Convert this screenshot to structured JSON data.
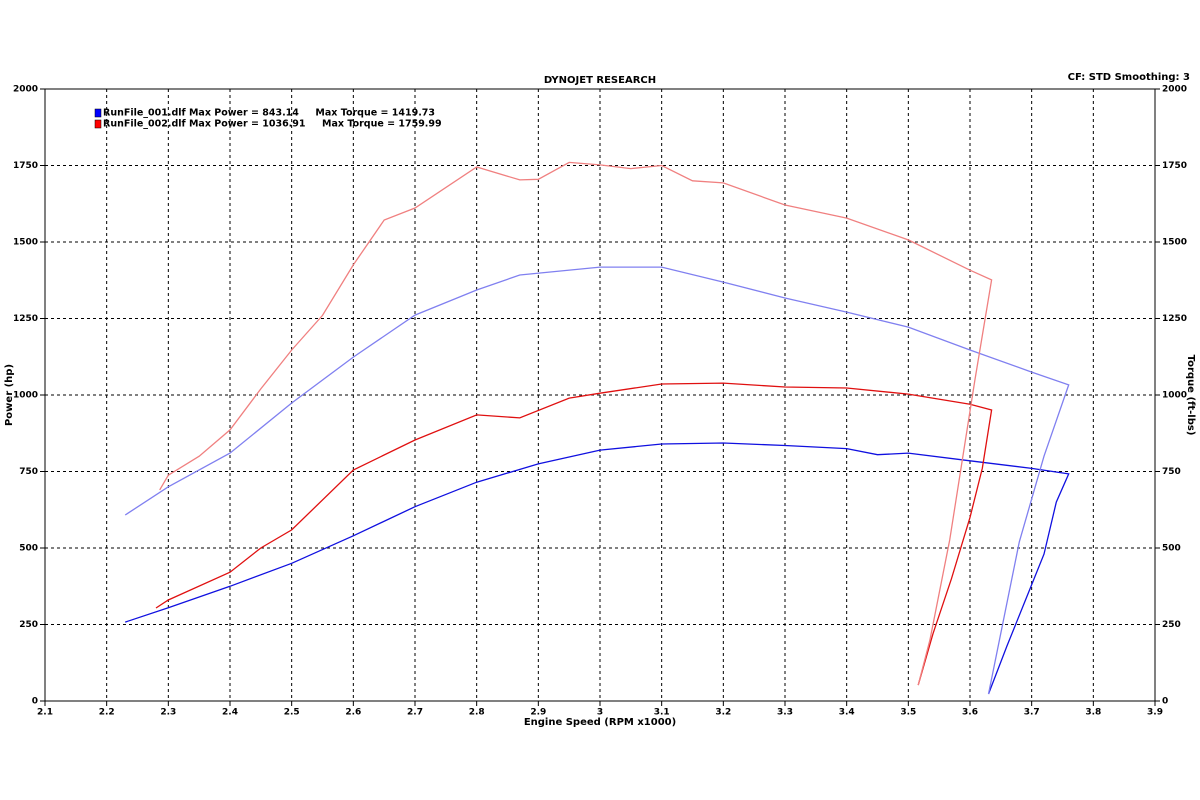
{
  "chart_data": {
    "type": "line",
    "title": "DYNOJET RESEARCH",
    "settings_text": "CF: STD  Smoothing: 3",
    "x_label": "Engine Speed (RPM x1000)",
    "y_label": "Power (hp)",
    "y2_label": "Torque (ft-lbs)",
    "xlim": [
      2.1,
      3.9
    ],
    "xticks": [
      2.1,
      2.2,
      2.3,
      2.4,
      2.5,
      2.6,
      2.7,
      2.8,
      2.9,
      3.0,
      3.1,
      3.2,
      3.3,
      3.4,
      3.5,
      3.6,
      3.7,
      3.8,
      3.9
    ],
    "ylim": [
      0,
      2000
    ],
    "yticks": [
      0,
      250,
      500,
      750,
      1000,
      1250,
      1500,
      1750,
      2000
    ],
    "y2lim": [
      0,
      2000
    ],
    "y2ticks": [
      0,
      250,
      500,
      750,
      1000,
      1250,
      1500,
      1750,
      2000
    ],
    "grid": true,
    "legend": [
      {
        "text": "RunFile_001.dlf Max Power = 843.14     Max Torque = 1419.73",
        "color": "#0000ff"
      },
      {
        "text": "RunFile_002.dlf Max Power = 1036.91     Max Torque = 1759.99",
        "color": "#ff0000"
      }
    ],
    "series": [
      {
        "color": "#1010e0",
        "x": [
          2.23,
          2.3,
          2.4,
          2.5,
          2.6,
          2.7,
          2.8,
          2.9,
          3.0,
          3.1,
          3.2,
          3.3,
          3.4,
          3.45,
          3.5,
          3.6,
          3.7,
          3.76,
          3.74,
          3.72,
          3.69,
          3.66,
          3.63
        ],
        "values": [
          258,
          305,
          375,
          450,
          540,
          635,
          715,
          775,
          820,
          840,
          843,
          835,
          825,
          805,
          810,
          785,
          760,
          742,
          650,
          480,
          330,
          180,
          23
        ]
      },
      {
        "color": "#8080f0",
        "axis": "y2",
        "x": [
          2.23,
          2.3,
          2.4,
          2.5,
          2.6,
          2.7,
          2.8,
          2.87,
          3.0,
          3.1,
          3.2,
          3.3,
          3.4,
          3.5,
          3.6,
          3.7,
          3.76,
          3.72,
          3.68,
          3.63
        ],
        "values": [
          608,
          700,
          810,
          974,
          1124,
          1261,
          1343,
          1392,
          1418,
          1418,
          1369,
          1317,
          1271,
          1222,
          1147,
          1075,
          1033,
          800,
          520,
          23
        ]
      },
      {
        "color": "#e01010",
        "x": [
          2.28,
          2.3,
          2.4,
          2.45,
          2.5,
          2.6,
          2.7,
          2.8,
          2.87,
          2.95,
          3.0,
          3.1,
          3.2,
          3.3,
          3.4,
          3.5,
          3.6,
          3.635,
          3.62,
          3.6,
          3.57,
          3.54,
          3.516
        ],
        "values": [
          304,
          330,
          421,
          500,
          559,
          755,
          853,
          935,
          925,
          990,
          1006,
          1036,
          1039,
          1026,
          1023,
          1003,
          970,
          951,
          760,
          600,
          400,
          220,
          52
        ]
      },
      {
        "color": "#f08080",
        "axis": "y2",
        "x": [
          2.286,
          2.3,
          2.35,
          2.4,
          2.45,
          2.5,
          2.55,
          2.6,
          2.65,
          2.7,
          2.8,
          2.87,
          2.9,
          2.95,
          3.0,
          3.05,
          3.1,
          3.15,
          3.2,
          3.3,
          3.4,
          3.5,
          3.6,
          3.635,
          3.608,
          3.567,
          3.535,
          3.516
        ],
        "values": [
          690,
          738,
          800,
          886,
          1020,
          1147,
          1260,
          1425,
          1572,
          1611,
          1745,
          1703,
          1705,
          1760,
          1752,
          1740,
          1750,
          1700,
          1693,
          1621,
          1578,
          1507,
          1408,
          1376,
          1049,
          526,
          199,
          52
        ]
      }
    ]
  }
}
